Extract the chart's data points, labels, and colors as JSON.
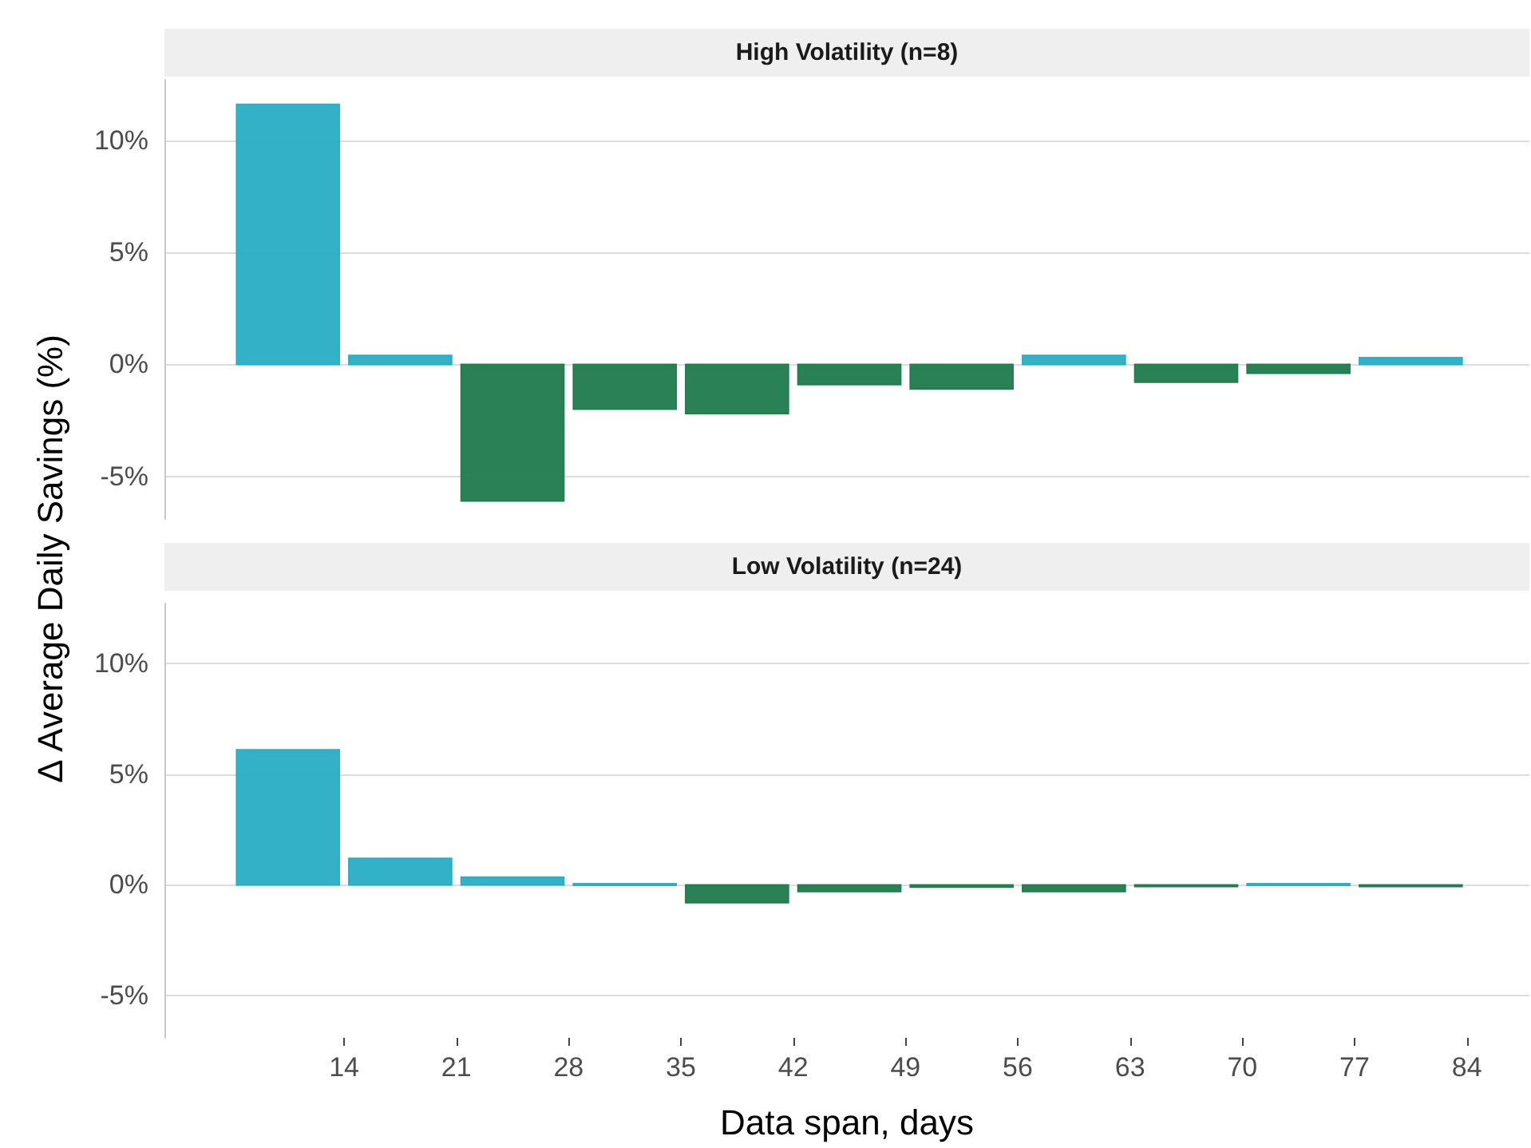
{
  "chart_data": [
    {
      "type": "histogram",
      "title": "High Volatility (n=8)",
      "ylabel": "Δ Average Daily Savings (%)",
      "bins": [
        7,
        14,
        21,
        28,
        35,
        42,
        49,
        56,
        63,
        70,
        77,
        84
      ],
      "values": [
        11.6,
        0.4,
        -6.1,
        -2.0,
        -2.2,
        -0.9,
        -1.1,
        0.4,
        -0.8,
        -0.4,
        0.3
      ],
      "colors": [
        "#27adc4",
        "#27adc4",
        "#1f7a4d",
        "#1f7a4d",
        "#1f7a4d",
        "#1f7a4d",
        "#1f7a4d",
        "#27adc4",
        "#1f7a4d",
        "#1f7a4d",
        "#27adc4"
      ],
      "xlim": [
        2.8,
        87.9
      ],
      "xticks": [
        14,
        21,
        28,
        35,
        42,
        49,
        56,
        63,
        70,
        77,
        84
      ],
      "ylim": [
        -6.9,
        12.7
      ],
      "yticks": [
        {
          "value": -5,
          "label": "-5%"
        },
        {
          "value": 0,
          "label": "0%"
        },
        {
          "value": 5,
          "label": "5%"
        },
        {
          "value": 10,
          "label": "10%"
        }
      ],
      "grid": "y",
      "tick_labels": "y"
    },
    {
      "type": "histogram",
      "title": "Low Volatility (n=24)",
      "xlabel": "Data span, days",
      "bins": [
        7,
        14,
        21,
        28,
        35,
        42,
        49,
        56,
        63,
        70,
        77,
        84
      ],
      "values": [
        6.1,
        1.2,
        0.35,
        0.05,
        -0.8,
        -0.3,
        -0.1,
        -0.3,
        -0.05,
        0.05,
        -0.05
      ],
      "colors": [
        "#27adc4",
        "#27adc4",
        "#27adc4",
        "#27adc4",
        "#1f7a4d",
        "#1f7a4d",
        "#1f7a4d",
        "#1f7a4d",
        "#1f7a4d",
        "#27adc4",
        "#1f7a4d"
      ],
      "xlim": [
        2.8,
        87.9
      ],
      "xticks": [
        14,
        21,
        28,
        35,
        42,
        49,
        56,
        63,
        70,
        77,
        84
      ],
      "ylim": [
        -6.9,
        12.7
      ],
      "yticks": [
        {
          "value": -5,
          "label": "-5%"
        },
        {
          "value": 0,
          "label": "0%"
        },
        {
          "value": 5,
          "label": "5%"
        },
        {
          "value": 10,
          "label": "10%"
        }
      ],
      "grid": "y"
    }
  ]
}
